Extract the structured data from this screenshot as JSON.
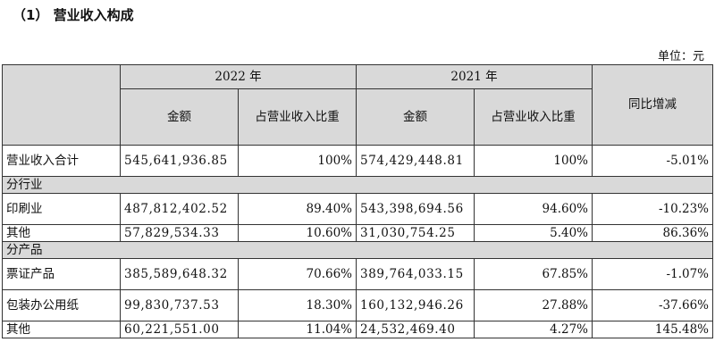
{
  "title": "（1） 营业收入构成",
  "unit": "单位：元",
  "header": {
    "year_2022": "2022 年",
    "year_2021": "2021 年",
    "amount": "金额",
    "ratio": "占营业收入比重",
    "yoy": "同比增减"
  },
  "rows": [
    {
      "label": "营业收入合计",
      "a22": "545,641,936.85",
      "r22": "100%",
      "a21": "574,429,448.81",
      "r21": "100%",
      "yoy": "-5.01%"
    },
    {
      "section": "分行业"
    },
    {
      "label": "印刷业",
      "a22": "487,812,402.52",
      "r22": "89.40%",
      "a21": "543,398,694.56",
      "r21": "94.60%",
      "yoy": "-10.23%"
    },
    {
      "label": "其他",
      "a22": "57,829,534.33",
      "r22": "10.60%",
      "a21": "31,030,754.25",
      "r21": "5.40%",
      "yoy": "86.36%"
    },
    {
      "section": "分产品"
    },
    {
      "label": "票证产品",
      "a22": "385,589,648.32",
      "r22": "70.66%",
      "a21": "389,764,033.15",
      "r21": "67.85%",
      "yoy": "-1.07%"
    },
    {
      "label": "包装办公用纸",
      "a22": "99,830,737.53",
      "r22": "18.30%",
      "a21": "160,132,946.26",
      "r21": "27.88%",
      "yoy": "-37.66%"
    },
    {
      "label": "其他",
      "a22": "60,221,551.00",
      "r22": "11.04%",
      "a21": "24,532,469.40",
      "r21": "4.27%",
      "yoy": "145.48%"
    }
  ]
}
